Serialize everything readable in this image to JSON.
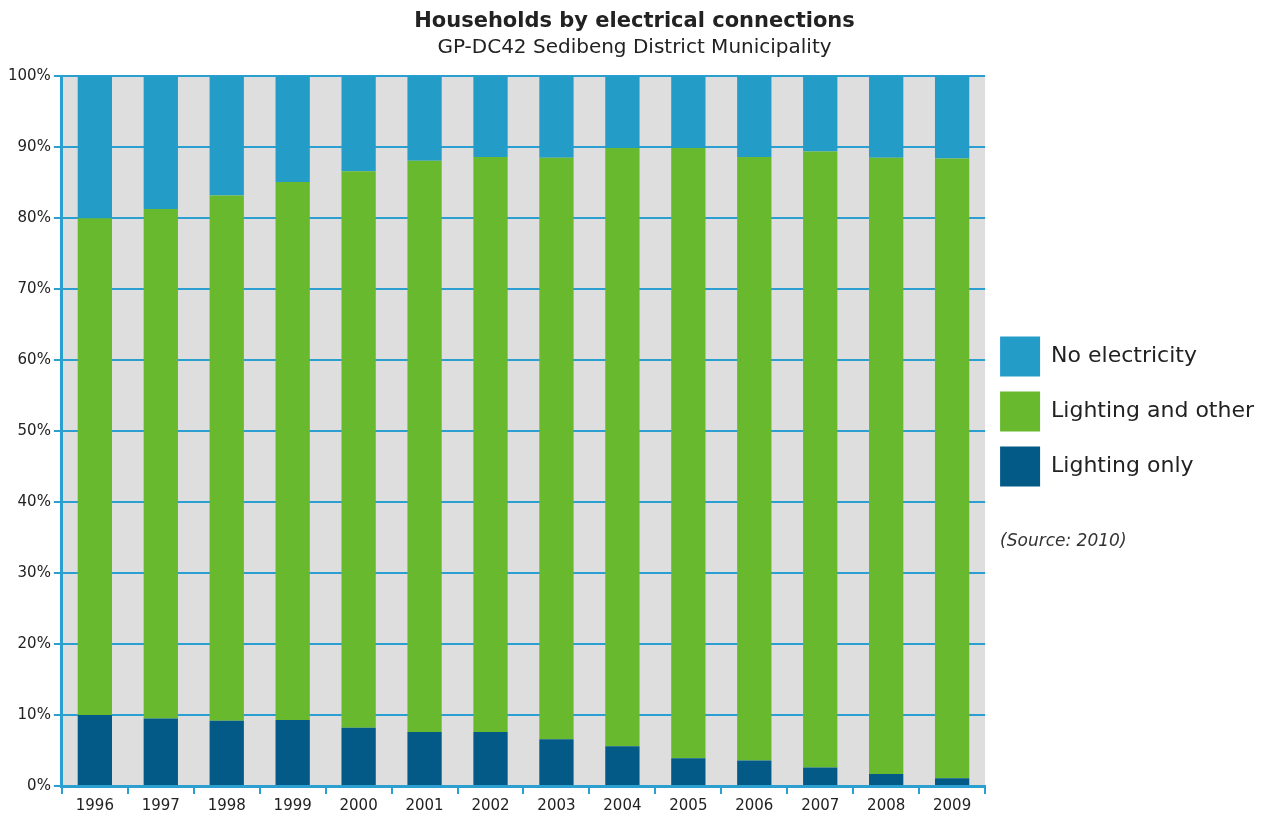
{
  "chart_data": {
    "type": "bar",
    "title": "Households by electrical connections",
    "subtitle": "GP-DC42 Sedibeng District Municipality",
    "categories": [
      "1996",
      "1997",
      "1998",
      "1999",
      "2000",
      "2001",
      "2002",
      "2003",
      "2004",
      "2005",
      "2006",
      "2007",
      "2008",
      "2009"
    ],
    "stacked": true,
    "series": [
      {
        "name": "Lighting only",
        "color": "#035a87",
        "values": [
          10.0,
          9.5,
          9.2,
          9.3,
          8.2,
          7.6,
          7.6,
          6.6,
          5.6,
          3.9,
          3.6,
          2.6,
          1.7,
          1.1
        ]
      },
      {
        "name": "Lighting and other",
        "color": "#69b92f",
        "values": [
          70.0,
          71.8,
          74.0,
          75.8,
          78.4,
          80.5,
          81.0,
          81.9,
          84.3,
          86.0,
          85.0,
          86.8,
          86.8,
          87.3
        ]
      },
      {
        "name": "No electricity",
        "color": "#239dc8",
        "values": [
          20.0,
          18.7,
          16.8,
          14.9,
          13.4,
          11.9,
          11.4,
          11.5,
          10.1,
          10.1,
          11.4,
          10.6,
          11.5,
          11.6
        ]
      }
    ],
    "ylim": [
      0,
      100
    ],
    "yticks": [
      {
        "value": 0,
        "label": "0%"
      },
      {
        "value": 10,
        "label": "10%"
      },
      {
        "value": 20,
        "label": "20%"
      },
      {
        "value": 30,
        "label": "30%"
      },
      {
        "value": 40,
        "label": "40%"
      },
      {
        "value": 50,
        "label": "50%"
      },
      {
        "value": 60,
        "label": "60%"
      },
      {
        "value": 70,
        "label": "70%"
      },
      {
        "value": 80,
        "label": "80%"
      },
      {
        "value": 90,
        "label": "90%"
      },
      {
        "value": 100,
        "label": "100%"
      }
    ],
    "grid": "y",
    "legend": "right",
    "annotations": [
      "(Source: 2010)"
    ]
  }
}
